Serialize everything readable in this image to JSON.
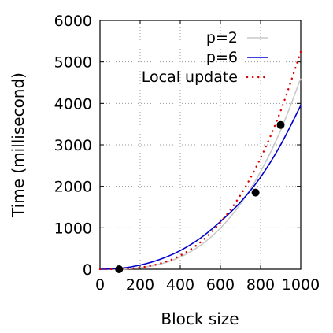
{
  "chart_data": {
    "type": "line",
    "xlabel": "Block size",
    "ylabel": "Time (millisecond)",
    "xlim": [
      0,
      1000
    ],
    "ylim": [
      0,
      6000
    ],
    "xticks": [
      "0",
      "200",
      "400",
      "600",
      "800",
      "1000"
    ],
    "yticks": [
      "0",
      "1000",
      "2000",
      "3000",
      "4000",
      "5000",
      "6000"
    ],
    "grid": true,
    "legend_position": "top-right",
    "series": [
      {
        "name": "p=2",
        "style": "solid",
        "color": "#c8c8c8",
        "x": [
          0,
          100,
          200,
          300,
          400,
          500,
          600,
          700,
          800,
          900,
          1000
        ],
        "y": [
          0,
          5,
          37,
          124,
          294,
          574,
          992,
          1575,
          2352,
          3349,
          4600
        ]
      },
      {
        "name": "p=6",
        "style": "solid",
        "color": "#0000cc",
        "x": [
          0,
          100,
          200,
          300,
          400,
          500,
          600,
          700,
          800,
          900,
          1000
        ],
        "y": [
          0,
          20,
          100,
          240,
          450,
          750,
          1150,
          1620,
          2220,
          3000,
          3950
        ]
      },
      {
        "name": "Local update",
        "style": "dotted",
        "color": "#dd0000",
        "x": [
          0,
          100,
          200,
          300,
          400,
          500,
          600,
          700,
          800,
          900,
          1000
        ],
        "y": [
          0,
          5,
          40,
          140,
          330,
          650,
          1130,
          1790,
          2680,
          3820,
          5240
        ]
      }
    ],
    "points": [
      {
        "x": 95,
        "y": 0
      },
      {
        "x": 775,
        "y": 1850
      },
      {
        "x": 900,
        "y": 3480
      }
    ],
    "point_color": "#000000"
  }
}
